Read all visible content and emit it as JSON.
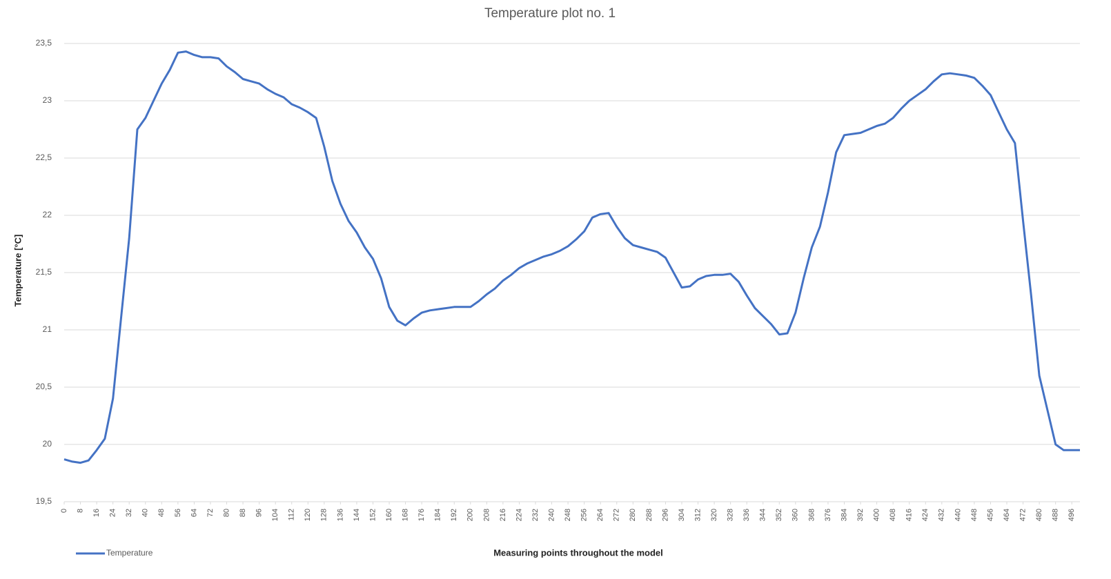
{
  "chart_data": {
    "type": "line",
    "title": "Temperature plot no. 1",
    "xlabel": "Measuring points throughout the model",
    "ylabel": "Temperature [°C]",
    "x": [
      0,
      4,
      8,
      12,
      16,
      20,
      24,
      28,
      32,
      36,
      40,
      44,
      48,
      52,
      56,
      60,
      64,
      68,
      72,
      76,
      80,
      84,
      88,
      92,
      96,
      100,
      104,
      108,
      112,
      116,
      120,
      124,
      128,
      132,
      136,
      140,
      144,
      148,
      152,
      156,
      160,
      164,
      168,
      172,
      176,
      180,
      184,
      188,
      192,
      196,
      200,
      204,
      208,
      212,
      216,
      220,
      224,
      228,
      232,
      236,
      240,
      244,
      248,
      252,
      256,
      260,
      264,
      268,
      272,
      276,
      280,
      284,
      288,
      292,
      296,
      300,
      304,
      308,
      312,
      316,
      320,
      324,
      328,
      332,
      336,
      340,
      344,
      348,
      352,
      356,
      360,
      364,
      368,
      372,
      376,
      380,
      384,
      388,
      392,
      396,
      400,
      404,
      408,
      412,
      416,
      420,
      424,
      428,
      432,
      436,
      440,
      444,
      448,
      452,
      456,
      460,
      464,
      468,
      472,
      476,
      480,
      484,
      488,
      492,
      496,
      500
    ],
    "series": [
      {
        "name": "Temperature",
        "color": "#4472c4",
        "values": [
          19.87,
          19.85,
          19.84,
          19.86,
          19.95,
          20.05,
          20.4,
          21.1,
          21.8,
          22.75,
          22.85,
          23.0,
          23.15,
          23.27,
          23.42,
          23.43,
          23.4,
          23.38,
          23.38,
          23.37,
          23.3,
          23.25,
          23.19,
          23.17,
          23.15,
          23.1,
          23.06,
          23.03,
          22.97,
          22.94,
          22.9,
          22.85,
          22.6,
          22.3,
          22.1,
          21.95,
          21.85,
          21.72,
          21.62,
          21.45,
          21.2,
          21.08,
          21.04,
          21.1,
          21.15,
          21.17,
          21.18,
          21.19,
          21.2,
          21.2,
          21.2,
          21.25,
          21.31,
          21.36,
          21.43,
          21.48,
          21.54,
          21.58,
          21.61,
          21.64,
          21.66,
          21.69,
          21.73,
          21.79,
          21.86,
          21.98,
          22.01,
          22.02,
          21.9,
          21.8,
          21.74,
          21.72,
          21.7,
          21.68,
          21.63,
          21.5,
          21.37,
          21.38,
          21.44,
          21.47,
          21.48,
          21.48,
          21.49,
          21.42,
          21.3,
          21.19,
          21.12,
          21.05,
          20.96,
          20.97,
          21.15,
          21.45,
          21.72,
          21.9,
          22.2,
          22.55,
          22.7,
          22.71,
          22.72,
          22.75,
          22.78,
          22.8,
          22.85,
          22.93,
          23.0,
          23.05,
          23.1,
          23.17,
          23.23,
          23.24,
          23.23,
          23.22,
          23.2,
          23.13,
          23.05,
          22.9,
          22.75,
          22.63,
          21.95,
          21.3,
          20.6,
          20.3,
          20.0,
          19.95,
          19.95,
          19.95
        ]
      }
    ],
    "xlim": [
      0,
      500
    ],
    "xticks": [
      0,
      8,
      16,
      24,
      32,
      40,
      48,
      56,
      64,
      72,
      80,
      88,
      96,
      104,
      112,
      120,
      128,
      136,
      144,
      152,
      160,
      168,
      176,
      184,
      192,
      200,
      208,
      216,
      224,
      232,
      240,
      248,
      256,
      264,
      272,
      280,
      288,
      296,
      304,
      312,
      320,
      328,
      336,
      344,
      352,
      360,
      368,
      376,
      384,
      392,
      400,
      408,
      416,
      424,
      432,
      440,
      448,
      456,
      464,
      472,
      480,
      488,
      496
    ],
    "ylim": [
      19.5,
      23.5
    ],
    "yticks": [
      {
        "value": 19.5,
        "label": "19,5"
      },
      20,
      {
        "value": 20.5,
        "label": "20,5"
      },
      21,
      {
        "value": 21.5,
        "label": "21,5"
      },
      22,
      {
        "value": 22.5,
        "label": "22,5"
      },
      23,
      {
        "value": 23.5,
        "label": "23,5"
      }
    ],
    "grid": true,
    "legend": "bottom-left"
  }
}
